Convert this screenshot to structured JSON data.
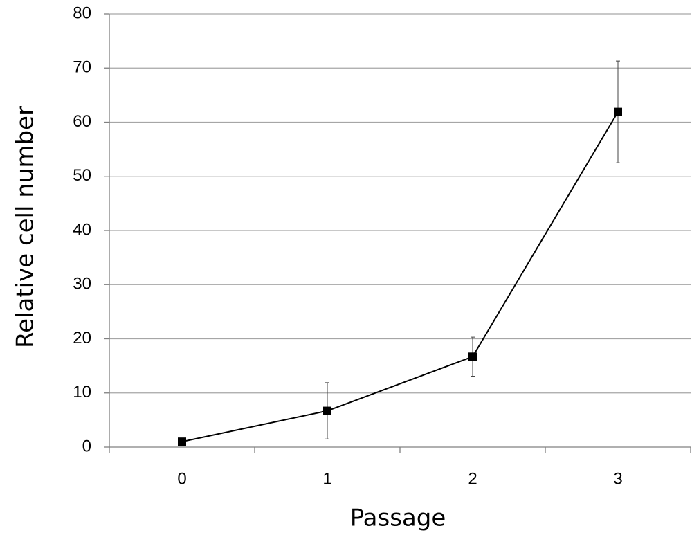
{
  "chart_data": {
    "type": "line",
    "x_label": "Passage",
    "y_label": "Relative cell number",
    "categories": [
      "0",
      "1",
      "2",
      "3"
    ],
    "series": [
      {
        "color": "#000000",
        "values": [
          1,
          6.7,
          16.7,
          61.9
        ],
        "errors": [
          0,
          5.2,
          3.6,
          9.4
        ]
      }
    ],
    "ylim": [
      0,
      80
    ],
    "yticks": [
      0,
      10,
      20,
      30,
      40,
      50,
      60,
      70,
      80
    ],
    "grid": true
  }
}
